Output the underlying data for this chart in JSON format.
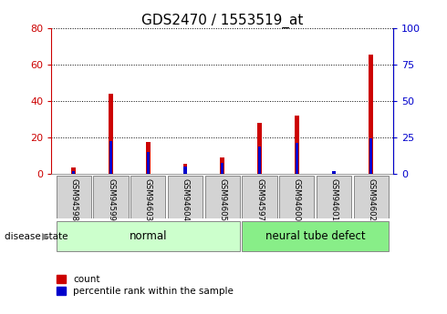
{
  "title": "GDS2470 / 1553519_at",
  "samples": [
    "GSM94598",
    "GSM94599",
    "GSM94603",
    "GSM94604",
    "GSM94605",
    "GSM94597",
    "GSM94600",
    "GSM94601",
    "GSM94602"
  ],
  "count_values": [
    3.5,
    44.0,
    17.5,
    5.5,
    9.0,
    28.0,
    32.0,
    1.5,
    65.5
  ],
  "percentile_values": [
    2.0,
    23.0,
    15.0,
    5.5,
    8.0,
    19.0,
    21.5,
    2.0,
    24.5
  ],
  "normal_indices": [
    0,
    1,
    2,
    3,
    4
  ],
  "disease_indices": [
    5,
    6,
    7,
    8
  ],
  "ylim_left": [
    0,
    80
  ],
  "ylim_right": [
    0,
    100
  ],
  "yticks_left": [
    0,
    20,
    40,
    60,
    80
  ],
  "yticks_right": [
    0,
    25,
    50,
    75,
    100
  ],
  "left_axis_color": "#cc0000",
  "right_axis_color": "#0000cc",
  "bar_color_count": "#cc0000",
  "bar_color_percentile": "#0000cc",
  "bg_plot": "#ffffff",
  "bg_xtick": "#d3d3d3",
  "normal_color": "#ccffcc",
  "disease_color": "#88ee88",
  "label_normal": "normal",
  "label_disease": "neural tube defect",
  "disease_state_label": "disease state",
  "legend_count": "count",
  "legend_percentile": "percentile rank within the sample",
  "red_bar_width": 0.12,
  "blue_bar_width": 0.08,
  "title_fontsize": 11,
  "tick_fontsize": 8
}
